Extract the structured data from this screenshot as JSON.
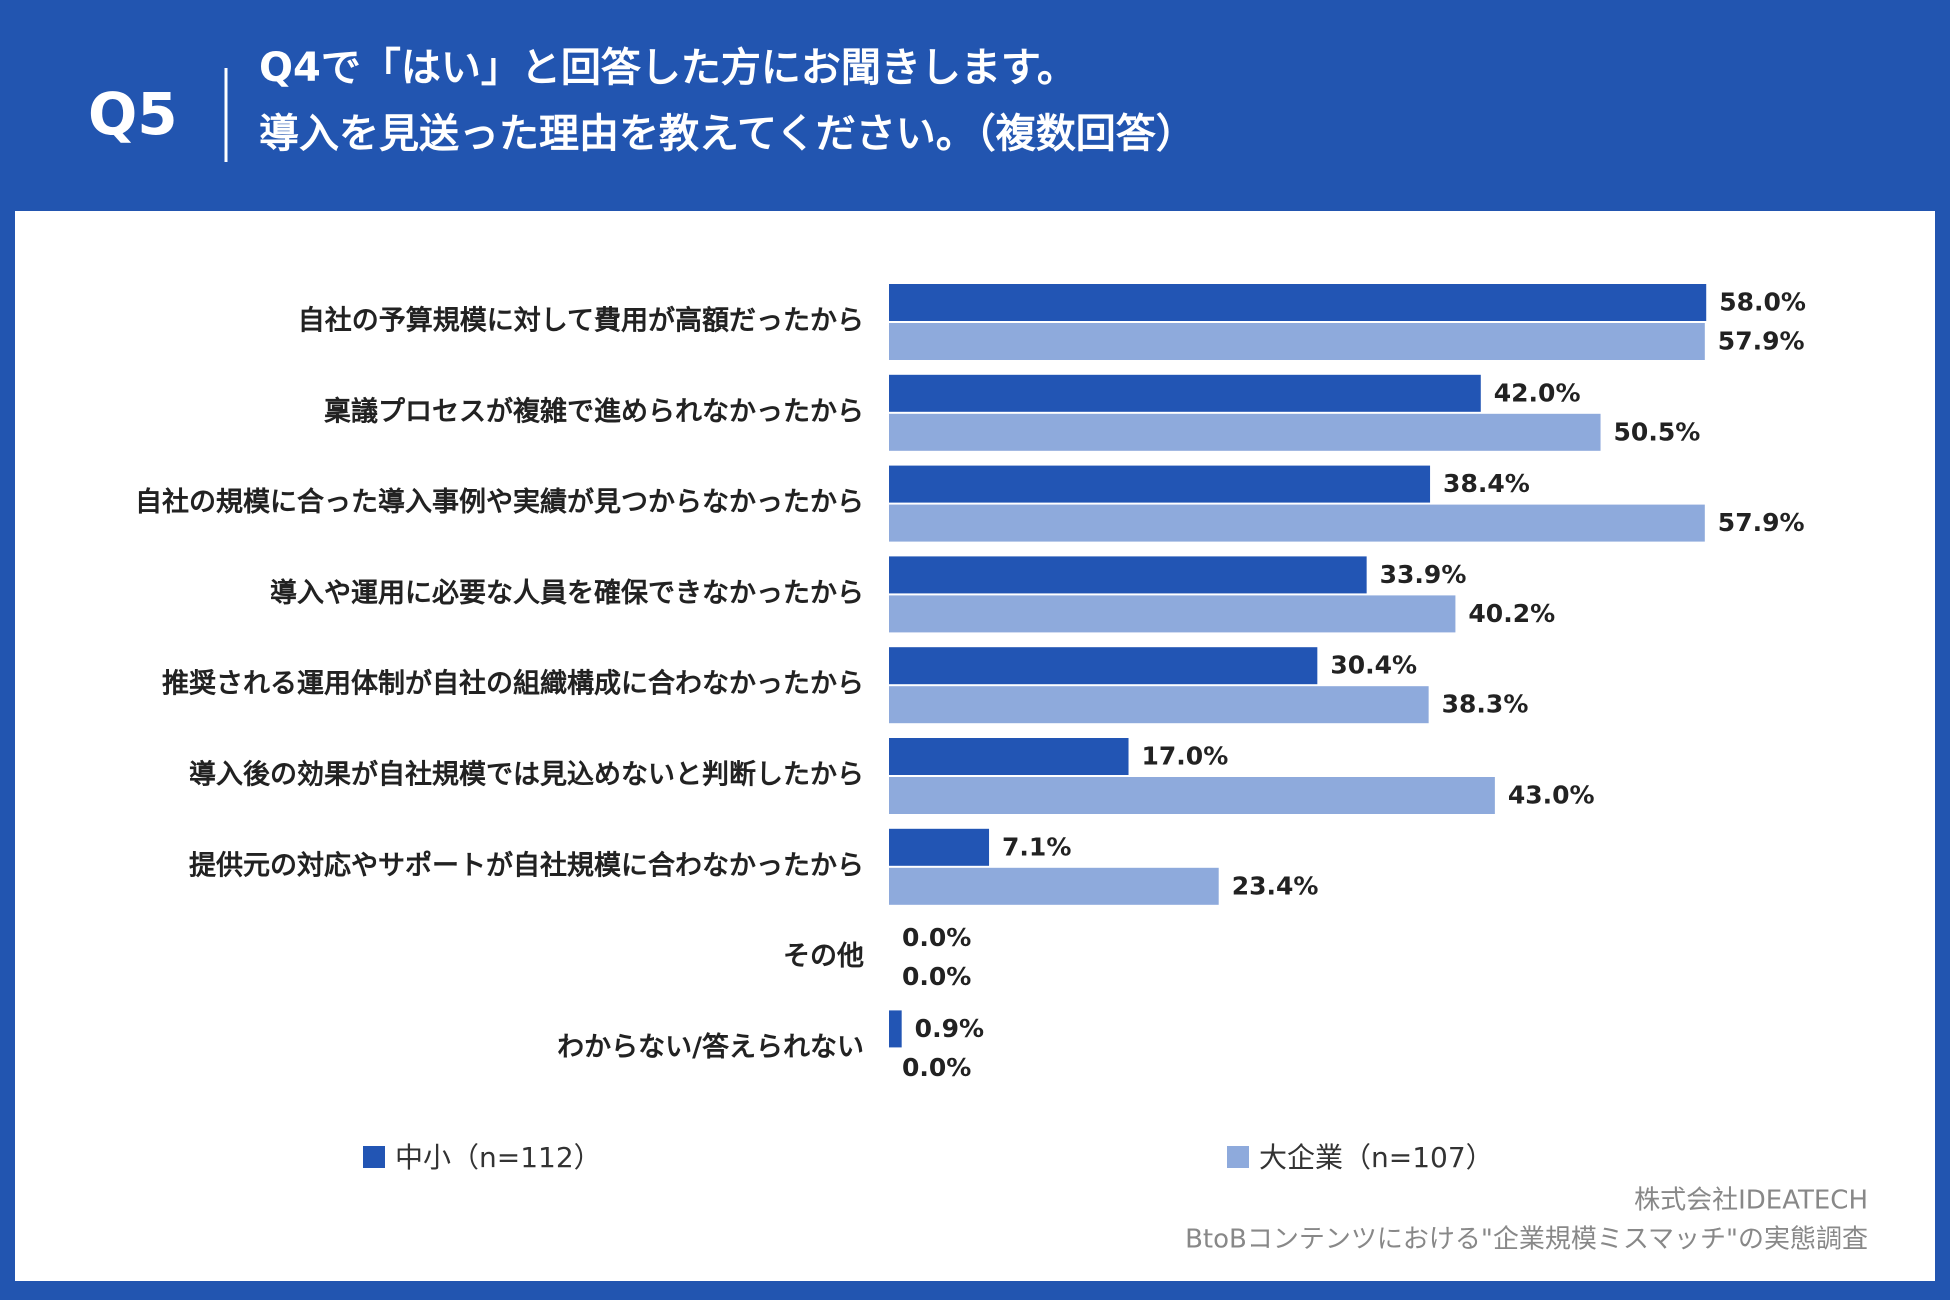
{
  "chart_data": {
    "type": "bar",
    "orientation": "horizontal",
    "question_number": "Q5",
    "title_lines": [
      "Q4で「はい」と回答した方にお聞きします。",
      "導入を見送った理由を教えてください。（複数回答）"
    ],
    "categories": [
      "自社の予算規模に対して費用が高額だったから",
      "稟議プロセスが複雑で進められなかったから",
      "自社の規模に合った導入事例や実績が見つからなかったから",
      "導入や運用に必要な人員を確保できなかったから",
      "推奨される運用体制が自社の組織構成に合わなかったから",
      "導入後の効果が自社規模では見込めないと判断したから",
      "提供元の対応やサポートが自社規模に合わなかったから",
      "その他",
      "わからない/答えられない"
    ],
    "series": [
      {
        "name": "中小（n=112）",
        "color": "#2255b4",
        "values": [
          58.0,
          42.0,
          38.4,
          33.9,
          30.4,
          17.0,
          7.1,
          0.0,
          0.9
        ],
        "value_labels": [
          "58.0%",
          "42.0%",
          "38.4%",
          "33.9%",
          "30.4%",
          "17.0%",
          "7.1%",
          "0.0%",
          "0.9%"
        ]
      },
      {
        "name": "大企業（n=107）",
        "color": "#8eaadc",
        "values": [
          57.9,
          50.5,
          57.9,
          40.2,
          38.3,
          43.0,
          23.4,
          0.0,
          0.0
        ],
        "value_labels": [
          "57.9%",
          "50.5%",
          "57.9%",
          "40.2%",
          "38.3%",
          "43.0%",
          "23.4%",
          "0.0%",
          "0.0%"
        ]
      }
    ],
    "source": [
      "株式会社IDEATECH",
      "BtoBコンテンツにおける\"企業規模ミスマッチ\"の実態調査"
    ]
  }
}
